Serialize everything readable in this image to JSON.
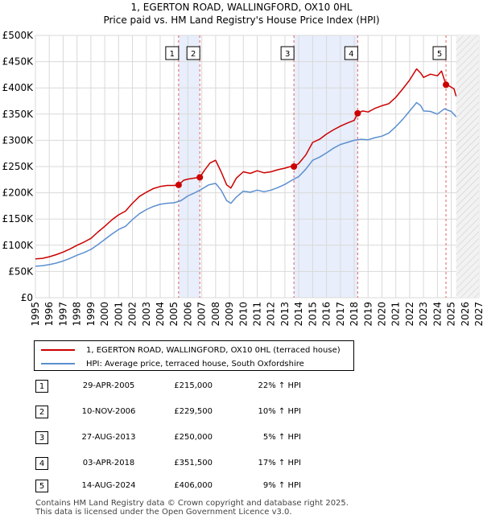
{
  "chart_data": {
    "type": "line",
    "title": "1, EGERTON ROAD, WALLINGFORD, OX10 0HL",
    "subtitle": "Price paid vs. HM Land Registry's House Price Index (HPI)",
    "xlim": [
      1995,
      2027
    ],
    "ylim": [
      0,
      500000
    ],
    "x_ticks": [
      "1995",
      "1996",
      "1997",
      "1998",
      "1999",
      "2000",
      "2001",
      "2002",
      "2003",
      "2004",
      "2005",
      "2006",
      "2007",
      "2008",
      "2009",
      "2010",
      "2011",
      "2012",
      "2013",
      "2014",
      "2015",
      "2016",
      "2017",
      "2018",
      "2019",
      "2020",
      "2021",
      "2022",
      "2023",
      "2024",
      "2025",
      "2026",
      "2027"
    ],
    "y_ticks": [
      {
        "value": 0,
        "label": "£0"
      },
      {
        "value": 50000,
        "label": "£50K"
      },
      {
        "value": 100000,
        "label": "£100K"
      },
      {
        "value": 150000,
        "label": "£150K"
      },
      {
        "value": 200000,
        "label": "£200K"
      },
      {
        "value": 250000,
        "label": "£250K"
      },
      {
        "value": 300000,
        "label": "£300K"
      },
      {
        "value": 350000,
        "label": "£350K"
      },
      {
        "value": 400000,
        "label": "£400K"
      },
      {
        "value": 450000,
        "label": "£450K"
      },
      {
        "value": 500000,
        "label": "£500K"
      }
    ],
    "series": [
      {
        "name": "1, EGERTON ROAD, WALLINGFORD, OX10 0HL (terraced house)",
        "color": "#cc0000",
        "x": [
          1995.0,
          1995.5,
          1996.0,
          1996.5,
          1997.0,
          1997.5,
          1998.0,
          1998.5,
          1999.0,
          1999.5,
          2000.0,
          2000.5,
          2001.0,
          2001.5,
          2002.0,
          2002.5,
          2003.0,
          2003.5,
          2004.0,
          2004.5,
          2005.0,
          2005.33,
          2005.7,
          2006.0,
          2006.5,
          2006.86,
          2007.2,
          2007.6,
          2008.0,
          2008.4,
          2008.8,
          2009.1,
          2009.5,
          2010.0,
          2010.5,
          2011.0,
          2011.5,
          2012.0,
          2012.5,
          2013.0,
          2013.4,
          2013.65,
          2014.0,
          2014.5,
          2015.0,
          2015.5,
          2016.0,
          2016.5,
          2017.0,
          2017.5,
          2018.0,
          2018.25,
          2018.6,
          2019.0,
          2019.5,
          2020.0,
          2020.5,
          2021.0,
          2021.5,
          2022.0,
          2022.5,
          2022.8,
          2023.0,
          2023.5,
          2024.0,
          2024.3,
          2024.62,
          2024.9,
          2025.2,
          2025.35
        ],
        "values": [
          74000,
          75000,
          78000,
          82000,
          87000,
          93000,
          100000,
          106000,
          113000,
          125000,
          136000,
          148000,
          158000,
          165000,
          180000,
          193000,
          201000,
          208000,
          212000,
          214000,
          214000,
          215000,
          224000,
          226000,
          228000,
          229500,
          243000,
          257000,
          262000,
          240000,
          215000,
          209000,
          228000,
          240000,
          237000,
          242000,
          238000,
          240000,
          244000,
          247000,
          250000,
          250000,
          256000,
          272000,
          296000,
          302000,
          312000,
          320000,
          327000,
          333000,
          338000,
          351500,
          356000,
          354000,
          361000,
          366000,
          370000,
          382000,
          398000,
          415000,
          436000,
          428000,
          420000,
          426000,
          423000,
          432000,
          406000,
          403000,
          398000,
          384000
        ]
      },
      {
        "name": "HPI: Average price, terraced house, South Oxfordshire",
        "color": "#5b8fd0",
        "x": [
          1995.0,
          1995.5,
          1996.0,
          1996.5,
          1997.0,
          1997.5,
          1998.0,
          1998.5,
          1999.0,
          1999.5,
          2000.0,
          2000.5,
          2001.0,
          2001.5,
          2002.0,
          2002.5,
          2003.0,
          2003.5,
          2004.0,
          2004.5,
          2005.0,
          2005.5,
          2006.0,
          2006.5,
          2007.0,
          2007.5,
          2008.0,
          2008.4,
          2008.8,
          2009.1,
          2009.5,
          2010.0,
          2010.5,
          2011.0,
          2011.5,
          2012.0,
          2012.5,
          2013.0,
          2013.5,
          2014.0,
          2014.5,
          2015.0,
          2015.5,
          2016.0,
          2016.5,
          2017.0,
          2017.5,
          2018.0,
          2018.5,
          2019.0,
          2019.5,
          2020.0,
          2020.5,
          2021.0,
          2021.5,
          2022.0,
          2022.5,
          2022.8,
          2023.0,
          2023.5,
          2024.0,
          2024.5,
          2025.0,
          2025.35
        ],
        "values": [
          60000,
          61000,
          63000,
          66000,
          70000,
          75000,
          81000,
          86000,
          92000,
          101000,
          111000,
          121000,
          130000,
          136000,
          149000,
          160000,
          168000,
          174000,
          178000,
          180000,
          181000,
          185000,
          194000,
          200000,
          207000,
          215000,
          218000,
          205000,
          185000,
          180000,
          192000,
          203000,
          201000,
          205000,
          202000,
          205000,
          210000,
          216000,
          224000,
          231000,
          245000,
          262000,
          268000,
          276000,
          285000,
          292000,
          296000,
          300000,
          302000,
          301000,
          305000,
          308000,
          314000,
          326000,
          340000,
          356000,
          372000,
          366000,
          356000,
          355000,
          350000,
          360000,
          355000,
          345000
        ]
      }
    ],
    "sales": [
      {
        "label": "1",
        "x": 2005.33,
        "value": 215000
      },
      {
        "label": "2",
        "x": 2006.86,
        "value": 229500
      },
      {
        "label": "3",
        "x": 2013.65,
        "value": 250000
      },
      {
        "label": "4",
        "x": 2018.25,
        "value": 351500
      },
      {
        "label": "5",
        "x": 2024.62,
        "value": 406000
      }
    ],
    "shaded_ranges": [
      [
        2005.33,
        2006.86
      ],
      [
        2013.65,
        2018.25
      ]
    ],
    "future_from": 2025.35
  },
  "legend": {
    "red_label": "1, EGERTON ROAD, WALLINGFORD, OX10 0HL (terraced house)",
    "blue_label": "HPI: Average price, terraced house, South Oxfordshire"
  },
  "transactions": [
    {
      "num": "1",
      "date": "29-APR-2005",
      "price": "£215,000",
      "pct": "22% ↑ HPI"
    },
    {
      "num": "2",
      "date": "10-NOV-2006",
      "price": "£229,500",
      "pct": "10% ↑ HPI"
    },
    {
      "num": "3",
      "date": "27-AUG-2013",
      "price": "£250,000",
      "pct": "5% ↑ HPI"
    },
    {
      "num": "4",
      "date": "03-APR-2018",
      "price": "£351,500",
      "pct": "17% ↑ HPI"
    },
    {
      "num": "5",
      "date": "14-AUG-2024",
      "price": "£406,000",
      "pct": "9% ↑ HPI"
    }
  ],
  "footer": {
    "line1": "Contains HM Land Registry data © Crown copyright and database right 2025.",
    "line2": "This data is licensed under the Open Government Licence v3.0."
  }
}
